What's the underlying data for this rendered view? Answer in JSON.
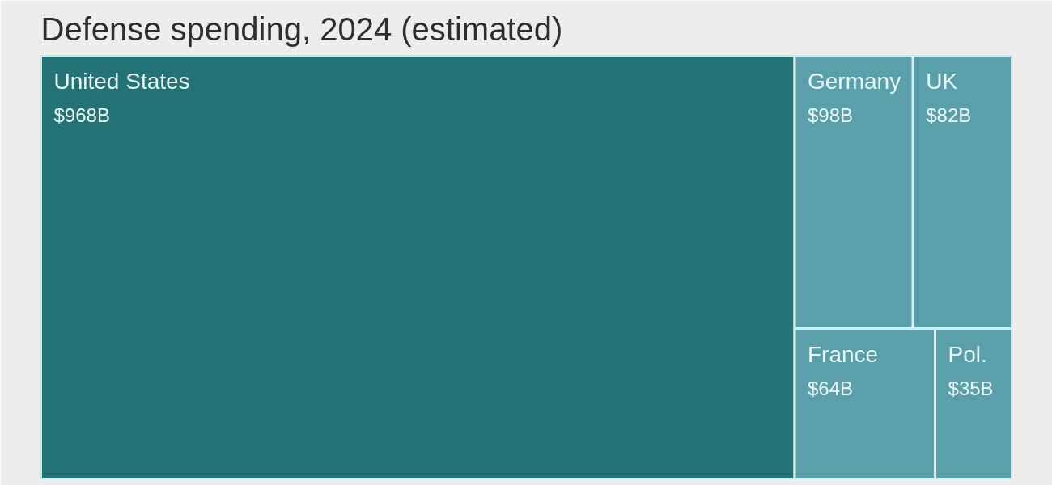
{
  "chart_data": {
    "type": "other",
    "title": "Defense spending, 2024 (estimated)",
    "categories": [
      "United States",
      "Germany",
      "UK",
      "France",
      "Pol."
    ],
    "values": [
      968,
      98,
      82,
      64,
      35
    ],
    "value_labels": [
      "$968B",
      "$98B",
      "$82B",
      "$64B",
      "$35B"
    ],
    "colors": [
      "#237276",
      "#5aa0ab",
      "#5aa0ab",
      "#5aa0ab",
      "#5aa0ab"
    ]
  }
}
